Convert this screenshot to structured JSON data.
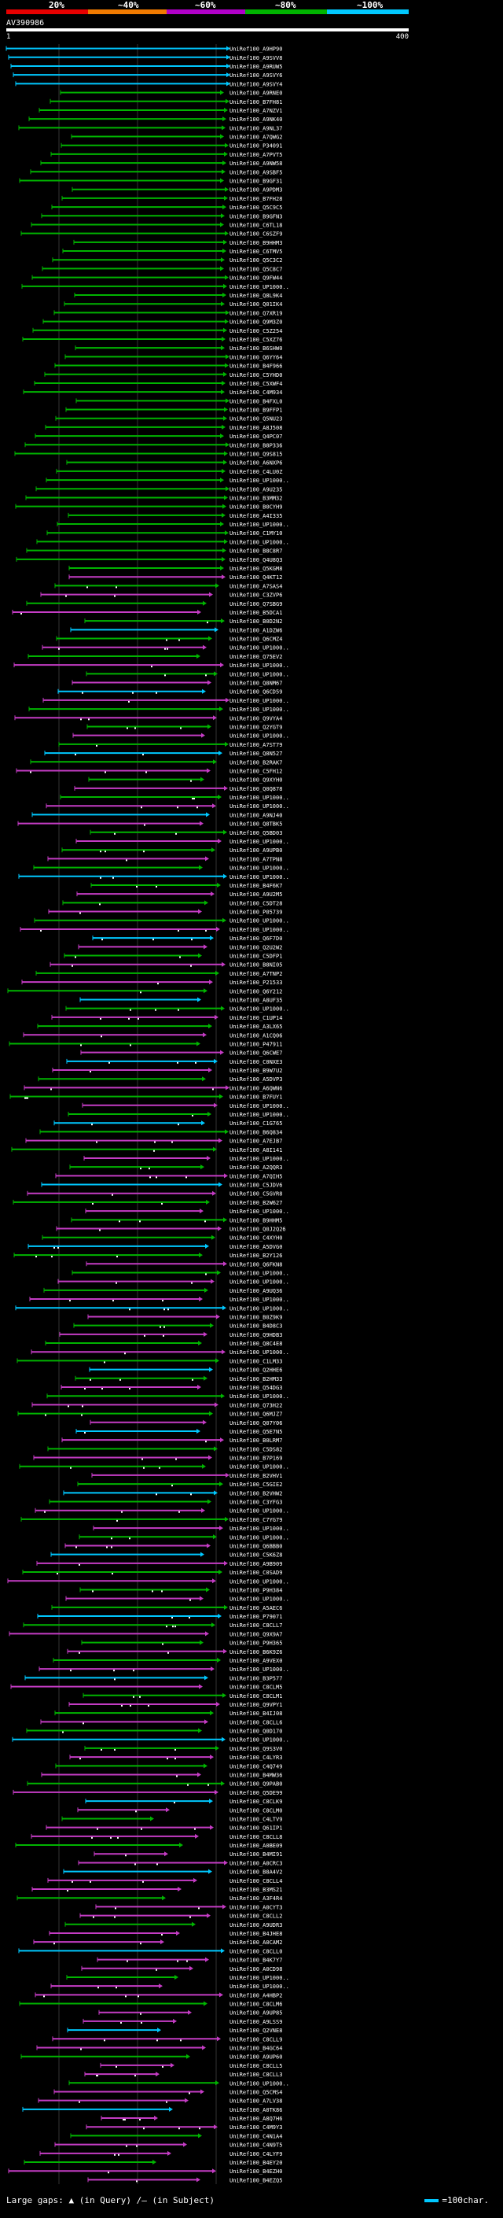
{
  "legend": {
    "labels": [
      "20%",
      "~40%",
      "~60%",
      "~80%",
      "~100%"
    ],
    "bands": [
      {
        "name": "red",
        "color": "#e60000"
      },
      {
        "name": "orange",
        "color": "#f07a00"
      },
      {
        "name": "purple",
        "color": "#b000c8"
      },
      {
        "name": "green",
        "color": "#00b400"
      },
      {
        "name": "cyan",
        "color": "#00c8ff"
      }
    ]
  },
  "query": {
    "name": "AV390986",
    "start": "1",
    "end": "400"
  },
  "footer": {
    "gaps_label": "Large gaps:",
    "in_query": "(in Query)",
    "in_subject": "(in Subject)",
    "scale_label": "=100char."
  },
  "hits": [
    "UniRef100_A9HP90",
    "UniRef100_A9SVV8",
    "UniRef100_A9RUW5",
    "UniRef100_A9SVY6",
    "UniRef100_A9SVY4",
    "UniRef100_A9RNE0",
    "UniRef100_B7FH81",
    "UniRef100_A7NZV1",
    "UniRef100_A9NK40",
    "UniRef100_A9NL37",
    "UniRef100_A7QWG2",
    "UniRef100_P34091",
    "UniRef100_A7PVT5",
    "UniRef100_A9NW58",
    "UniRef100_A9SBF5",
    "UniRef100_B9GF31",
    "UniRef100_A9PDM3",
    "UniRef100_B7FH28",
    "UniRef100_Q5C9C5",
    "UniRef100_B9GFN3",
    "UniRef100_C6TL18",
    "UniRef100_C6SZF9",
    "UniRef100_B9HHM3",
    "UniRef100_C6TMV5",
    "UniRef100_Q5C3C2",
    "UniRef100_Q5C8C7",
    "UniRef100_Q9FW44",
    "UniRef100_UP1000..",
    "UniRef100_Q8L9K4",
    "UniRef100_Q01IK4",
    "UniRef100_Q7XR19",
    "UniRef100_Q9M3Z0",
    "UniRef100_C5Z254",
    "UniRef100_C5XZ76",
    "UniRef100_B6SHW0",
    "UniRef100_Q6YY64",
    "UniRef100_B4F966",
    "UniRef100_C5YHD0",
    "UniRef100_C5XWF4",
    "UniRef100_C4M934",
    "UniRef100_B4FXL0",
    "UniRef100_B9FFP1",
    "UniRef100_Q5NU23",
    "UniRef100_A8J508",
    "UniRef100_Q4PC07",
    "UniRef100_B8P336",
    "UniRef100_Q9S815",
    "UniRef100_A6NXP6",
    "UniRef100_C4LU0Z",
    "UniRef100_UP1000..",
    "UniRef100_A9U235",
    "UniRef100_B3MM32",
    "UniRef100_B0CYH9",
    "UniRef100_A4I335",
    "UniRef100_UP1000..",
    "UniRef100_C1MY10",
    "UniRef100_UP1000..",
    "UniRef100_B8C8R7",
    "UniRef100_Q4U8Q3",
    "UniRef100_Q5KGM8",
    "UniRef100_Q4KT12",
    "UniRef100_A7SAS4",
    "UniRef100_C3ZVP6",
    "UniRef100_Q7SBG9",
    "UniRef100_B5DCA1",
    "UniRef100_B0D2N2",
    "UniRef100_A1DZW6",
    "UniRef100_Q6CMZ4",
    "UniRef100_UP1000..",
    "UniRef100_Q75EV2",
    "UniRef100_UP1000..",
    "UniRef100_UP1000..",
    "UniRef100_Q8NM67",
    "UniRef100_Q6CD59",
    "UniRef100_UP1000..",
    "UniRef100_UP1000..",
    "UniRef100_Q9VYA4",
    "UniRef100_Q2YGT9",
    "UniRef100_UP1000..",
    "UniRef100_A7ST79",
    "UniRef100_Q8N527",
    "UniRef100_B2RAK7",
    "UniRef100_C5FH12",
    "UniRef100_Q9XYH0",
    "UniRef100_Q0Q878",
    "UniRef100_UP1000..",
    "UniRef100_UP1000..",
    "UniRef100_A9NJ40",
    "UniRef100_Q8TBK5",
    "UniRef100_Q5BD03",
    "UniRef100_UP1000..",
    "UniRef100_A9UPB0",
    "UniRef100_A7TPN8",
    "UniRef100_UP1000..",
    "UniRef100_UP1000..",
    "UniRef100_B4F6K7",
    "UniRef100_A9U2M5",
    "UniRef100_C5DT28",
    "UniRef100_P05739",
    "UniRef100_UP1000..",
    "UniRef100_UP1000..",
    "UniRef100_Q6F7D0",
    "UniRef100_Q2U2W2",
    "UniRef100_C5DFP1",
    "UniRef100_B8NI05",
    "UniRef100_A7TNP2",
    "UniRef100_P21533",
    "UniRef100_Q6Y212",
    "UniRef100_A8UF35",
    "UniRef100_UP1000..",
    "UniRef100_C1UP14",
    "UniRef100_A3LX65",
    "UniRef100_A1CQ06",
    "UniRef100_P47911",
    "UniRef100_Q6CWE7",
    "UniRef100_C0NXE3",
    "UniRef100_B9W7U2",
    "UniRef100_A5DVP3",
    "UniRef100_A6QWN6",
    "UniRef100_B7FUY1",
    "UniRef100_UP1000..",
    "UniRef100_UP1000..",
    "UniRef100_C1G765",
    "UniRef100_B6Q834",
    "UniRef100_A7EJB7",
    "UniRef100_A8I141",
    "UniRef100_UP1000..",
    "UniRef100_A2QQR3",
    "UniRef100_A7QIH5",
    "UniRef100_C5JDV6",
    "UniRef100_C5GVR8",
    "UniRef100_B2W627",
    "UniRef100_UP1000..",
    "UniRef100_B9HHM5",
    "UniRef100_Q0J2Q26",
    "UniRef100_C4XYH0",
    "UniRef100_A5DVG0",
    "UniRef100_B2Y126",
    "UniRef100_Q6FKN8",
    "UniRef100_UP1000..",
    "UniRef100_UP1000..",
    "UniRef100_A9UQ36",
    "UniRef100_UP1000..",
    "UniRef100_UP1000..",
    "UniRef100_B0Z9K9",
    "UniRef100_B4D8C3",
    "UniRef100_Q9HDB3",
    "UniRef100_Q8C4E8",
    "UniRef100_UP1000..",
    "UniRef100_C1LM33",
    "UniRef100_Q2HHE6",
    "UniRef100_B2HM33",
    "UniRef100_Q54DG3",
    "UniRef100_UP1000..",
    "UniRef100_Q73H22",
    "UniRef100_Q6MJZ7",
    "UniRef100_Q07Y06",
    "UniRef100_Q5E7N5",
    "UniRef100_B0LRM7",
    "UniRef100_C5DS82",
    "UniRef100_B7P169",
    "UniRef100_UP1000..",
    "UniRef100_B2VHV1",
    "UniRef100_C5GIE2",
    "UniRef100_B2VHW2",
    "UniRef100_C3YFG3",
    "UniRef100_UP1000..",
    "UniRef100_C7YG79",
    "UniRef100_UP1000..",
    "UniRef100_UP1000..",
    "UniRef100_Q6BBB0",
    "UniRef100_C5K6Z8",
    "UniRef100_A9B909",
    "UniRef100_C0SAD9",
    "UniRef100_UP1000..",
    "UniRef100_P9H384",
    "UniRef100_UP1000..",
    "UniRef100_A5AEC6",
    "UniRef100_P79071",
    "UniRef100_C8CLL7",
    "UniRef100_Q9X9A7",
    "UniRef100_P9H365",
    "UniRef100_B6K9Z6",
    "UniRef100_A9VEX0",
    "UniRef100_UP1000..",
    "UniRef100_B3P577",
    "UniRef100_C8CLM5",
    "UniRef100_C8CLM1",
    "UniRef100_Q9VPY1",
    "UniRef100_B4IJ08",
    "UniRef100_C8CLL6",
    "UniRef100_Q0D170",
    "UniRef100_UP1000..",
    "UniRef100_Q9S3V0",
    "UniRef100_C4LYR3",
    "UniRef100_C4Q749",
    "UniRef100_B4MW36",
    "UniRef100_Q9PAB0",
    "UniRef100_Q5DE99",
    "UniRef100_C8CLK9",
    "UniRef100_C8CLM0",
    "UniRef100_C4LTV9",
    "UniRef100_Q61IP1",
    "UniRef100_C8CLL8",
    "UniRef100_A0BE09",
    "UniRef100_B4MI91",
    "UniRef100_A0CRC3",
    "UniRef100_B8A4V2",
    "UniRef100_C8CLL4",
    "UniRef100_B3MS21",
    "UniRef100_A3F4R4",
    "UniRef100_A0CYT3",
    "UniRef100_C8CLL2",
    "UniRef100_A9UDR3",
    "UniRef100_B4JHE8",
    "UniRef100_A0CAM2",
    "UniRef100_C8CLL0",
    "UniRef100_B4K7Y7",
    "UniRef100_A0CD98",
    "UniRef100_UP1000..",
    "UniRef100_UP1000..",
    "UniRef100_A4HBP2",
    "UniRef100_C8CLM6",
    "UniRef100_A9UP85",
    "UniRef100_A9LSS9",
    "UniRef100_Q2VNE8",
    "UniRef100_C8CLL9",
    "UniRef100_B4GC64",
    "UniRef100_A9UP60",
    "UniRef100_C8CLL5",
    "UniRef100_C8CLL3",
    "UniRef100_UP1000..",
    "UniRef100_Q5CMS4",
    "UniRef100_A7LV38",
    "UniRef100_A0TK86",
    "UniRef100_A8Q7H6",
    "UniRef100_C4M9Y3",
    "UniRef100_C4N1A4",
    "UniRef100_C4N9T5",
    "UniRef100_C4LYF9",
    "UniRef100_B4EY20",
    "UniRef100_B4EZH0",
    "UniRef100_B4EZQ5"
  ]
}
